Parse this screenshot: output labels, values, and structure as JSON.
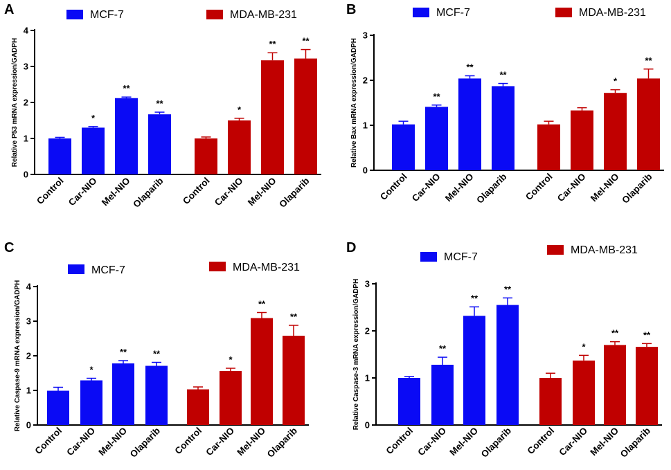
{
  "colors": {
    "mcf7": "#0a0af5",
    "mda": "#c00000",
    "axis": "#000000"
  },
  "chart_data": [
    {
      "type": "bar",
      "panel": "A",
      "ylabel": "Relative P53 mRNA expression/GADPH",
      "ylim": [
        0,
        4
      ],
      "yticks": [
        "0",
        "1",
        "2",
        "3",
        "4"
      ],
      "categories": [
        "Control",
        "Car-NIO",
        "Mel-NIO",
        "Olaparib"
      ],
      "series": [
        {
          "name": "MCF-7",
          "values": [
            1.0,
            1.3,
            2.12,
            1.67
          ],
          "errors": [
            0.03,
            0.03,
            0.03,
            0.06
          ],
          "sig": [
            "",
            "*",
            "**",
            "**"
          ]
        },
        {
          "name": "MDA-MB-231",
          "values": [
            1.0,
            1.5,
            3.17,
            3.22
          ],
          "errors": [
            0.04,
            0.06,
            0.21,
            0.25
          ],
          "sig": [
            "",
            "*",
            "**",
            "**"
          ]
        }
      ]
    },
    {
      "type": "bar",
      "panel": "B",
      "ylabel": "Relative Bax mRNA expression/GADPH",
      "ylim": [
        0,
        3
      ],
      "yticks": [
        "0",
        "1",
        "2",
        "3"
      ],
      "categories": [
        "Control",
        "Car-NIO",
        "Mel-NIO",
        "Olaparib"
      ],
      "series": [
        {
          "name": "MCF-7",
          "values": [
            1.02,
            1.41,
            2.04,
            1.87
          ],
          "errors": [
            0.07,
            0.04,
            0.06,
            0.06
          ],
          "sig": [
            "",
            "**",
            "**",
            "**"
          ]
        },
        {
          "name": "MDA-MB-231",
          "values": [
            1.02,
            1.33,
            1.72,
            2.04
          ],
          "errors": [
            0.07,
            0.06,
            0.07,
            0.21
          ],
          "sig": [
            "",
            "",
            "*",
            "**"
          ]
        }
      ]
    },
    {
      "type": "bar",
      "panel": "C",
      "ylabel": "Relative Caspase-9 mRNA expression/GADPH",
      "ylim": [
        0,
        4
      ],
      "yticks": [
        "0",
        "1",
        "2",
        "3",
        "4"
      ],
      "categories": [
        "Control",
        "Car-NIO",
        "Mel-NIO",
        "Olaparib"
      ],
      "series": [
        {
          "name": "MCF-7",
          "values": [
            0.99,
            1.29,
            1.78,
            1.71
          ],
          "errors": [
            0.1,
            0.06,
            0.08,
            0.1
          ],
          "sig": [
            "",
            "*",
            "**",
            "**"
          ]
        },
        {
          "name": "MDA-MB-231",
          "values": [
            1.03,
            1.56,
            3.09,
            2.58
          ],
          "errors": [
            0.07,
            0.08,
            0.16,
            0.3
          ],
          "sig": [
            "",
            "*",
            "**",
            "**"
          ]
        }
      ]
    },
    {
      "type": "bar",
      "panel": "D",
      "ylabel": "Relative Caspase-3 mRNA expression/GADPH",
      "ylim": [
        0,
        3
      ],
      "yticks": [
        "0",
        "1",
        "2",
        "3"
      ],
      "categories": [
        "Control",
        "Car-NIO",
        "Mel-NIO",
        "Olaparib"
      ],
      "series": [
        {
          "name": "MCF-7",
          "values": [
            1.0,
            1.28,
            2.32,
            2.55
          ],
          "errors": [
            0.03,
            0.16,
            0.19,
            0.15
          ],
          "sig": [
            "",
            "**",
            "**",
            "**"
          ]
        },
        {
          "name": "MDA-MB-231",
          "values": [
            1.0,
            1.37,
            1.7,
            1.66
          ],
          "errors": [
            0.1,
            0.11,
            0.07,
            0.07
          ],
          "sig": [
            "",
            "*",
            "**",
            "**"
          ]
        }
      ]
    }
  ]
}
